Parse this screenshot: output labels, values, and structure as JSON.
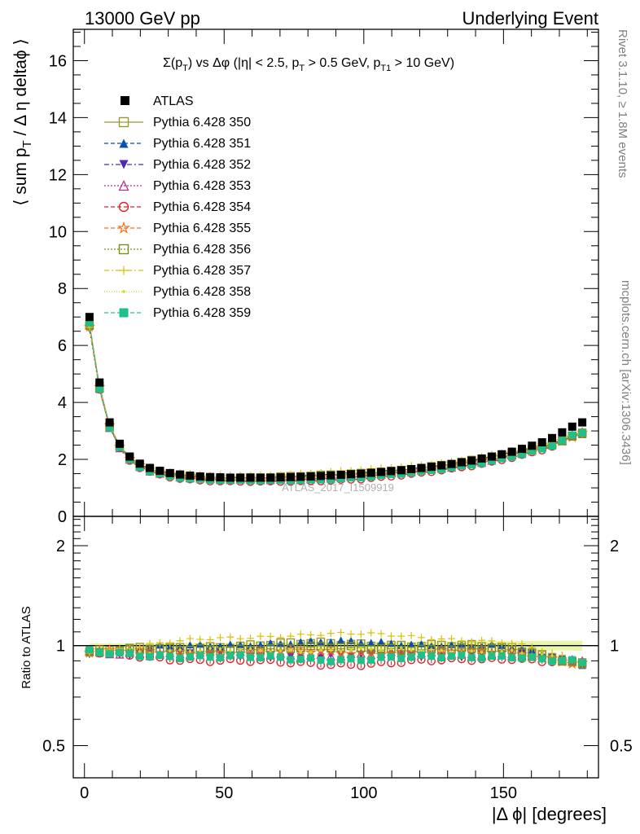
{
  "header": {
    "left": "13000 GeV pp",
    "right": "Underlying Event"
  },
  "side_labels": {
    "rivet": "Rivet 3.1.10, ≥ 1.8M events",
    "mcplots": "mcplots.cern.ch [arXiv:1306.3436]"
  },
  "watermark": "ATLAS_2017_I1509919",
  "chart_data": [
    {
      "type": "scatter",
      "panel": "main",
      "title": "Σ(p_T) vs Δφ (|η| < 2.5, p_T > 0.5 GeV, p_T1 > 10 GeV)",
      "title_parts": {
        "sigma": "Σ(p",
        "t1": ") vs Δφ (|η| < 2.5, p",
        "t2": " > 0.5 GeV, p",
        "t3": " > 10 GeV)",
        "sub_T": "T",
        "sub_T1": "T1"
      },
      "ylabel": "⟨ sum p_T / Δ η deltaϕ ⟩",
      "ylabel_parts": {
        "a": "⟨ sum p",
        "b": " / Δ η deltaϕ ⟩",
        "sub": "T"
      },
      "xlim": [
        -4,
        184
      ],
      "ylim": [
        0,
        17.1
      ],
      "y_ticks": [
        0,
        2,
        4,
        6,
        8,
        10,
        12,
        14,
        16
      ],
      "x": [
        1.8,
        5.4,
        9.0,
        12.6,
        16.2,
        19.8,
        23.4,
        27.0,
        30.6,
        34.2,
        37.8,
        41.4,
        45.0,
        48.6,
        52.2,
        55.8,
        59.4,
        63.0,
        66.6,
        70.2,
        73.8,
        77.4,
        81.0,
        84.6,
        88.2,
        91.8,
        95.4,
        99.0,
        102.6,
        106.2,
        109.8,
        113.4,
        117.0,
        120.6,
        124.2,
        127.8,
        131.4,
        135.0,
        138.6,
        142.2,
        145.8,
        149.4,
        153.0,
        156.6,
        160.2,
        163.8,
        167.4,
        171.0,
        174.6,
        178.2
      ],
      "data": {
        "name": "ATLAS",
        "values": [
          7.0,
          4.7,
          3.3,
          2.55,
          2.1,
          1.85,
          1.7,
          1.6,
          1.52,
          1.47,
          1.43,
          1.4,
          1.38,
          1.37,
          1.36,
          1.36,
          1.36,
          1.36,
          1.36,
          1.37,
          1.38,
          1.39,
          1.4,
          1.42,
          1.44,
          1.46,
          1.48,
          1.5,
          1.53,
          1.56,
          1.59,
          1.62,
          1.66,
          1.7,
          1.74,
          1.79,
          1.84,
          1.9,
          1.96,
          2.03,
          2.1,
          2.18,
          2.27,
          2.37,
          2.48,
          2.6,
          2.75,
          2.95,
          3.15,
          3.3
        ]
      },
      "series": [
        {
          "name": "Pythia 6.428 350",
          "color": "#999933",
          "marker": "open-square",
          "dash": "",
          "ratio_shift": 0.04
        },
        {
          "name": "Pythia 6.428 351",
          "color": "#0a4fb4",
          "marker": "triangle-up",
          "dash": "5,3",
          "ratio_shift": 0.05
        },
        {
          "name": "Pythia 6.428 352",
          "color": "#4b2bb0",
          "marker": "triangle-down",
          "dash": "6,3,2,3",
          "ratio_shift": -0.02
        },
        {
          "name": "Pythia 6.428 353",
          "color": "#b0308f",
          "marker": "open-triangle-up",
          "dash": "2,2",
          "ratio_shift": -0.01
        },
        {
          "name": "Pythia 6.428 354",
          "color": "#e0202a",
          "marker": "open-circle",
          "dash": "5,3",
          "ratio_shift": -0.05
        },
        {
          "name": "Pythia 6.428 355",
          "color": "#f07020",
          "marker": "open-star",
          "dash": "5,3",
          "ratio_shift": 0.0
        },
        {
          "name": "Pythia 6.428 356",
          "color": "#7f8c1c",
          "marker": "open-square",
          "dash": "2,2",
          "ratio_shift": 0.02
        },
        {
          "name": "Pythia 6.428 357",
          "color": "#d8c20a",
          "marker": "cross-dot",
          "dash": "6,3,2,3",
          "ratio_shift": 0.09
        },
        {
          "name": "Pythia 6.428 358",
          "color": "#c8dc20",
          "marker": "dot",
          "dash": "1,2",
          "ratio_shift": 0.01
        },
        {
          "name": "Pythia 6.428 359",
          "color": "#1fc08a",
          "marker": "filled-square",
          "dash": "5,3",
          "ratio_shift": -0.03
        }
      ]
    },
    {
      "type": "scatter",
      "panel": "ratio",
      "ylabel": "Ratio to ATLAS",
      "xlabel": "|Δ ϕ| [degrees]",
      "xlim": [
        -4,
        184
      ],
      "ylim": [
        0.4,
        2.45
      ],
      "y_ticks": [
        0.5,
        1,
        2
      ],
      "y_tick_labels": [
        "0.5",
        "1",
        "2"
      ],
      "x_ticks": [
        0,
        50,
        100,
        150
      ],
      "x_tick_labels": [
        "0",
        "50",
        "100",
        "150"
      ],
      "y_scale": "log",
      "reference_line": 1
    }
  ]
}
